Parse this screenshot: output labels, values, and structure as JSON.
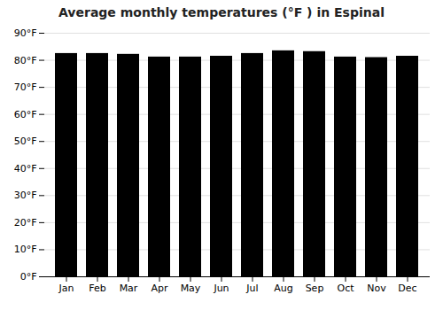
{
  "chart_data": {
    "type": "bar",
    "title": "Average monthly temperatures (°F ) in Espinal",
    "categories": [
      "Jan",
      "Feb",
      "Mar",
      "Apr",
      "May",
      "Jun",
      "Jul",
      "Aug",
      "Sep",
      "Oct",
      "Nov",
      "Dec"
    ],
    "values": [
      82.5,
      82.5,
      82.2,
      81.2,
      81.2,
      81.5,
      82.5,
      83.5,
      83.2,
      81.2,
      81.0,
      81.5
    ],
    "ylim": [
      0,
      90
    ],
    "yticks": [
      {
        "value": 0,
        "label": "0°F"
      },
      {
        "value": 10,
        "label": "10°F"
      },
      {
        "value": 20,
        "label": "20°F"
      },
      {
        "value": 30,
        "label": "30°F"
      },
      {
        "value": 40,
        "label": "40°F"
      },
      {
        "value": 50,
        "label": "50°F"
      },
      {
        "value": 60,
        "label": "60°F"
      },
      {
        "value": 70,
        "label": "70°F"
      },
      {
        "value": 80,
        "label": "80°F"
      },
      {
        "value": 90,
        "label": "90°F"
      }
    ],
    "grid": true
  }
}
